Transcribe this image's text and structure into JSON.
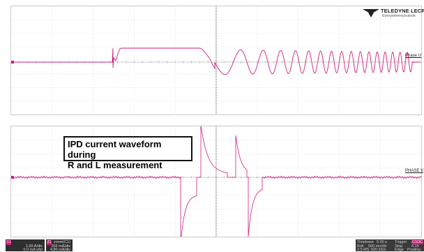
{
  "brand": {
    "name": "TELEDYNE LECROY",
    "tagline": "Everywhereyoulook"
  },
  "annotation": {
    "line1": "IPD current waveform during",
    "line2": "R and L measurement"
  },
  "channels": {
    "upper_label": "Phase U",
    "lower_label": "PHASE V"
  },
  "bottom_badges": [
    {
      "tag": "C1",
      "line1": "",
      "line2": "1.00 A/div",
      "line3": "0.0 mA ofst"
    },
    {
      "tag": "Z1",
      "line1": "zoom(C1)",
      "line2": "265 mA/div",
      "line3": "4.80 mA/div"
    }
  ],
  "timebase": {
    "label": "Timebase",
    "value": "5.00 s",
    "roll_label": "Roll",
    "roll_value": "500 ms/div",
    "sample": "2.5 MS",
    "rate": "500 kS/s"
  },
  "trigger": {
    "label": "Trigger",
    "tag": "C1DC",
    "mode": "Stop",
    "level": "4.16",
    "edge": "Edge",
    "slope": "Positive"
  },
  "colors": {
    "trace": "#d21c7e",
    "grid": "#c9c9c9",
    "dots": "#bdbdbd"
  }
}
